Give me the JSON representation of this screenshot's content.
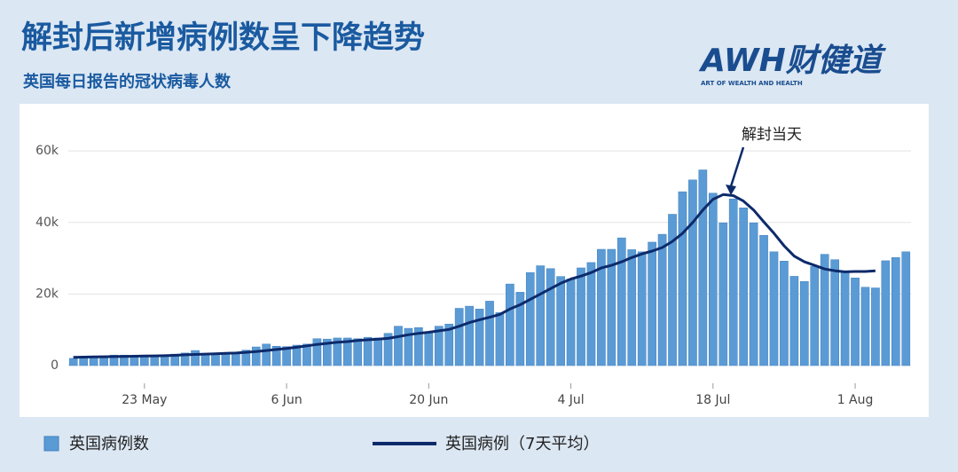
{
  "chart_data": {
    "type": "bar",
    "title": "解封后新增病例数呈下降趋势",
    "subtitle": "英国每日报告的冠状病毒人数",
    "logo": {
      "text": "AWH财健道",
      "tagline": "ART OF WEALTH AND HEALTH"
    },
    "annotation": "解封当天",
    "categories": [
      null,
      null,
      null,
      null,
      null,
      null,
      null,
      "23 May",
      null,
      null,
      null,
      null,
      null,
      null,
      null,
      null,
      null,
      null,
      null,
      null,
      null,
      "6 Jun",
      null,
      null,
      null,
      null,
      null,
      null,
      null,
      null,
      null,
      null,
      null,
      null,
      null,
      "20 Jun",
      null,
      null,
      null,
      null,
      null,
      null,
      null,
      null,
      null,
      null,
      null,
      null,
      null,
      "4 Jul",
      null,
      null,
      null,
      null,
      null,
      null,
      null,
      null,
      null,
      null,
      null,
      null,
      null,
      "18 Jul",
      null,
      null,
      null,
      null,
      null,
      null,
      null,
      null,
      null,
      null,
      null,
      null,
      null,
      "1 Aug",
      null,
      null,
      null,
      null,
      null
    ],
    "series": [
      {
        "name": "英国病例数",
        "type": "bar",
        "color": "#5b9bd5",
        "values": [
          2000,
          2200,
          2400,
          2700,
          2900,
          2900,
          2700,
          2500,
          2500,
          3000,
          3200,
          3500,
          4200,
          3400,
          3300,
          3200,
          3200,
          4300,
          5200,
          6000,
          5400,
          5300,
          5700,
          6000,
          7500,
          7400,
          7700,
          7700,
          7500,
          7900,
          7700,
          9000,
          11000,
          10400,
          10600,
          9300,
          11000,
          11600,
          16000,
          16600,
          15800,
          18000,
          14800,
          22800,
          20500,
          26000,
          27900,
          27100,
          24900,
          24200,
          27300,
          28800,
          32500,
          32500,
          35700,
          32400,
          31800,
          34500,
          36700,
          42300,
          48600,
          51900,
          54700,
          48200,
          39900,
          46600,
          44100,
          39900,
          36400,
          31800,
          29200,
          24950,
          23500,
          27700,
          31100,
          29600,
          26100,
          24500,
          21900,
          21700,
          29300,
          30200,
          31800
        ]
      },
      {
        "name": "英国病例（7天平均）",
        "type": "line",
        "color": "#0d2a6b",
        "values": [
          2300,
          2350,
          2400,
          2450,
          2500,
          2550,
          2600,
          2650,
          2700,
          2750,
          2850,
          3000,
          3100,
          3200,
          3300,
          3400,
          3500,
          3700,
          3900,
          4200,
          4500,
          4800,
          5100,
          5500,
          5900,
          6200,
          6500,
          6700,
          7000,
          7200,
          7400,
          7600,
          8100,
          8600,
          9000,
          9300,
          9700,
          10100,
          11000,
          12000,
          12800,
          13500,
          14300,
          15800,
          17000,
          18500,
          20000,
          21500,
          23000,
          24200,
          25000,
          26000,
          27300,
          28000,
          29000,
          30200,
          31200,
          32000,
          33000,
          34700,
          37000,
          40000,
          43500,
          46500,
          47800,
          47500,
          46000,
          43500,
          40200,
          37000,
          33500,
          30600,
          29000,
          28000,
          27000,
          26500,
          26200,
          26300,
          26300,
          26500,
          null,
          null,
          null
        ]
      }
    ],
    "ylim": [
      0,
      65000
    ],
    "yticks": [
      0,
      {
        "value": 20000,
        "label": "20k"
      },
      {
        "value": 40000,
        "label": "40k"
      },
      {
        "value": 60000,
        "label": "60k"
      }
    ],
    "grid": true
  }
}
